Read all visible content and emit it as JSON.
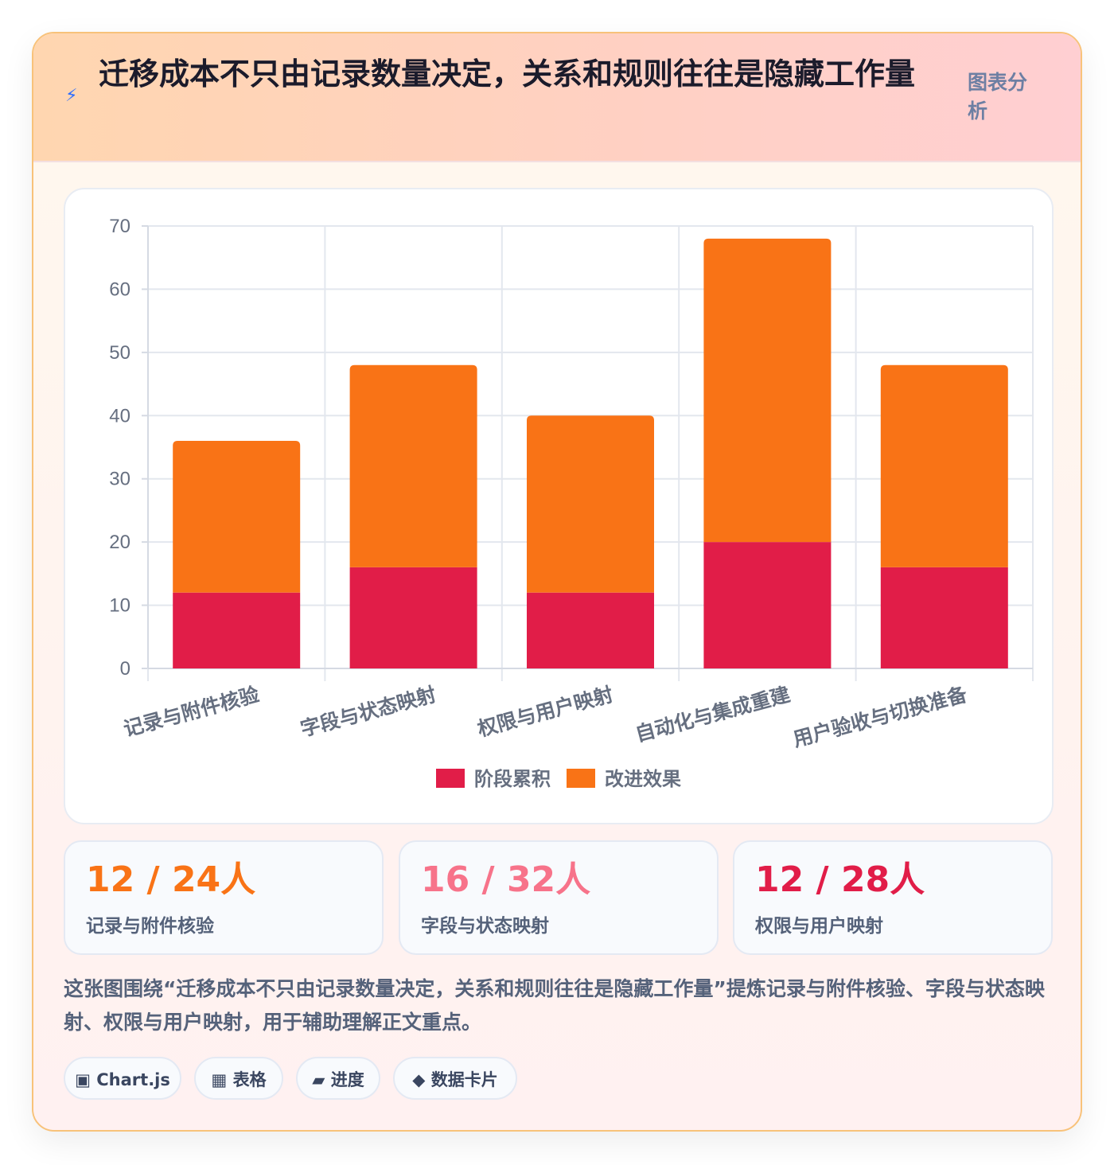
{
  "header": {
    "icon": "lightning-icon",
    "icon_glyph": "⚡",
    "title": "迁移成本不只由记录数量决定，关系和规则往往是隐藏工作量",
    "badge": "图表分析"
  },
  "colors": {
    "series_1": "#e11d48",
    "series_2": "#f97316",
    "stat_1": "#f97316",
    "stat_2": "#f7738a",
    "stat_3": "#e11d48"
  },
  "chart_data": {
    "type": "bar",
    "stacked": true,
    "categories": [
      "记录与附件核验",
      "字段与状态映射",
      "权限与用户映射",
      "自动化与集成重建",
      "用户验收与切换准备"
    ],
    "series": [
      {
        "name": "阶段累积",
        "values": [
          12,
          16,
          12,
          20,
          16
        ],
        "color": "#e11d48"
      },
      {
        "name": "改进效果",
        "values": [
          24,
          32,
          28,
          48,
          32
        ],
        "color": "#f97316"
      }
    ],
    "y_ticks": [
      "0",
      "10",
      "20",
      "30",
      "40",
      "50",
      "60",
      "70"
    ],
    "ylim": [
      0,
      70
    ],
    "grid": true,
    "legend": "bottom"
  },
  "stats": [
    {
      "value": "12 / 24人",
      "label": "记录与附件核验"
    },
    {
      "value": "16 / 32人",
      "label": "字段与状态映射"
    },
    {
      "value": "12 / 28人",
      "label": "权限与用户映射"
    }
  ],
  "summary": "这张图围绕“迁移成本不只由记录数量决定，关系和规则往往是隐藏工作量”提炼记录与附件核验、字段与状态映射、权限与用户映射，用于辅助理解正文重点。",
  "tags": [
    {
      "icon": "chart-square-icon",
      "label": "▣ Chart.js"
    },
    {
      "icon": "table-icon",
      "label": "▦ 表格"
    },
    {
      "icon": "progress-icon",
      "label": "▰ 进度"
    },
    {
      "icon": "diamond-icon",
      "label": "◆ 数据卡片"
    }
  ]
}
